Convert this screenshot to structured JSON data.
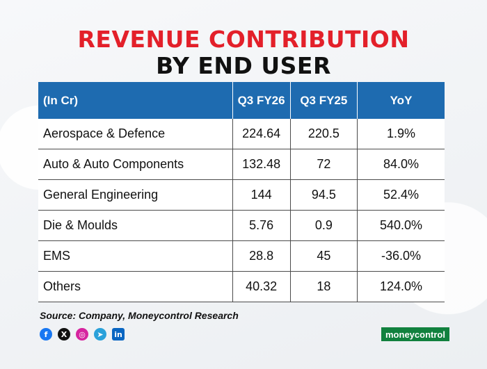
{
  "title": {
    "line1": "REVENUE CONTRIBUTION",
    "line2": "BY END USER"
  },
  "table": {
    "headers": [
      "(In Cr)",
      "Q3 FY26",
      "Q3 FY25",
      "YoY"
    ],
    "rows": [
      [
        "Aerospace & Defence",
        "224.64",
        "220.5",
        "1.9%"
      ],
      [
        "Auto & Auto Components",
        "132.48",
        "72",
        "84.0%"
      ],
      [
        "General Engineering",
        "144",
        "94.5",
        "52.4%"
      ],
      [
        "Die & Moulds",
        "5.76",
        "0.9",
        "540.0%"
      ],
      [
        "EMS",
        "28.8",
        "45",
        "-36.0%"
      ],
      [
        "Others",
        "40.32",
        "18",
        "124.0%"
      ]
    ]
  },
  "source": "Source: Company, Moneycontrol Research",
  "social": [
    "f",
    "X",
    "◎",
    "➤",
    "in"
  ],
  "brand": {
    "part1": "money",
    "part2": "control"
  },
  "colors": {
    "title_red": "#e3202a",
    "header_blue": "#1e6bb0",
    "brand_green": "#11813e"
  }
}
